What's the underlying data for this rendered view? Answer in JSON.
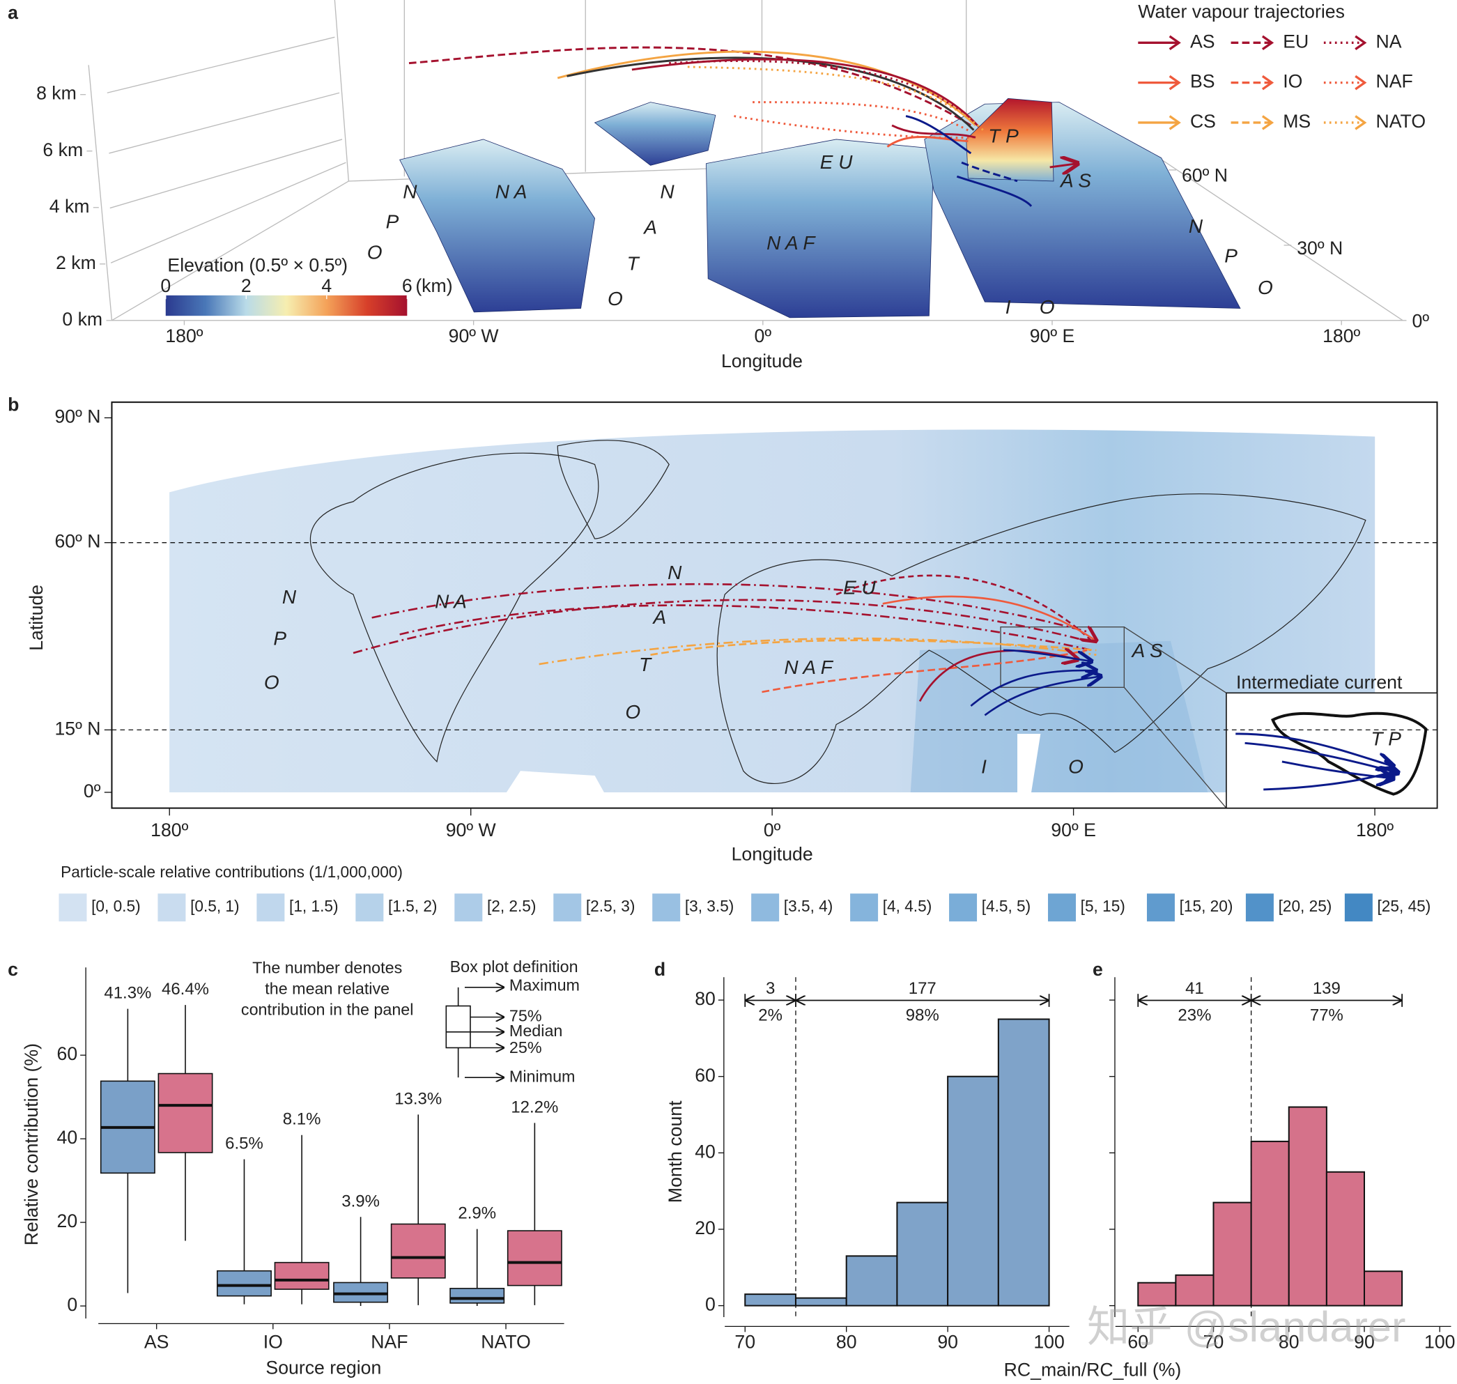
{
  "panel_labels": [
    "a",
    "b",
    "c",
    "d",
    "e"
  ],
  "panel_a": {
    "legend_title": "Water vapour trajectories",
    "trajectories": [
      {
        "name": "AS",
        "color": "#a5112e",
        "style": "solid"
      },
      {
        "name": "EU",
        "color": "#a5112e",
        "style": "dashed"
      },
      {
        "name": "NA",
        "color": "#a5112e",
        "style": "dotted"
      },
      {
        "name": "BS",
        "color": "#ef5a3c",
        "style": "solid"
      },
      {
        "name": "IO",
        "color": "#ef5a3c",
        "style": "dashed"
      },
      {
        "name": "NAF",
        "color": "#ef5a3c",
        "style": "dotted"
      },
      {
        "name": "CS",
        "color": "#f4a442",
        "style": "solid"
      },
      {
        "name": "MS",
        "color": "#f4a442",
        "style": "dashed"
      },
      {
        "name": "NATO",
        "color": "#f4a442",
        "style": "dotted"
      }
    ],
    "z_ticks": [
      {
        "value": 8,
        "label": "8 km"
      },
      {
        "value": 6,
        "label": "6 km"
      },
      {
        "value": 4,
        "label": "4 km"
      },
      {
        "value": 2,
        "label": "2 km"
      },
      {
        "value": 0,
        "label": "0 km"
      }
    ],
    "lat_ticks": [
      {
        "value": 60,
        "label": "60º N"
      },
      {
        "value": 30,
        "label": "30º N"
      },
      {
        "value": 0,
        "label": "0º"
      }
    ],
    "lon_ticks": [
      {
        "value": -180,
        "label": "180º"
      },
      {
        "value": -90,
        "label": "90º W"
      },
      {
        "value": 0,
        "label": "0º"
      },
      {
        "value": 90,
        "label": "90º E"
      },
      {
        "value": 180,
        "label": "180º"
      }
    ],
    "xlabel": "Longitude",
    "colorbar": {
      "title": "Elevation (0.5º × 0.5º)",
      "ticks": [
        0,
        2,
        4,
        6
      ],
      "unit": "(km)",
      "colors": [
        "#2b3a8f",
        "#4a78b8",
        "#b9dbe8",
        "#f6eeb0",
        "#f4a259",
        "#d7402a",
        "#a5112e"
      ]
    },
    "region_labels": [
      "N",
      "P",
      "O",
      "N A",
      "N",
      "A",
      "T",
      "O",
      "E U",
      "T P",
      "A S",
      "N A F",
      "N",
      "P",
      "O",
      "I",
      "O"
    ]
  },
  "panel_b": {
    "lat_ticks": [
      {
        "value": 90,
        "label": "90º N"
      },
      {
        "value": 60,
        "label": "60º N"
      },
      {
        "value": 15,
        "label": "15º N"
      },
      {
        "value": 0,
        "label": "0º"
      }
    ],
    "reference_lats": [
      60,
      15
    ],
    "lon_ticks": [
      {
        "value": -180,
        "label": "180º"
      },
      {
        "value": -90,
        "label": "90º W"
      },
      {
        "value": 0,
        "label": "0º"
      },
      {
        "value": 90,
        "label": "90º E"
      },
      {
        "value": 180,
        "label": "180º"
      }
    ],
    "xlabel": "Longitude",
    "ylabel": "Latitude",
    "inset_title": "Intermediate current",
    "region_labels": [
      "N",
      "P",
      "O",
      "N A",
      "N",
      "A",
      "T",
      "O",
      "E U",
      "A S",
      "N A F",
      "I",
      "O",
      "T P"
    ],
    "legend_title": "Particle-scale relative contributions (1/1,000,000)",
    "legend_bins": [
      "[0, 0.5)",
      "[0.5, 1)",
      "[1, 1.5)",
      "[1.5, 2)",
      "[2, 2.5)",
      "[2.5, 3)",
      "[3, 3.5)",
      "[3.5, 4)",
      "[4, 4.5)",
      "[4.5, 5)",
      "[5, 15)",
      "[15, 20)",
      "[20, 25)",
      "[25, 45)"
    ],
    "legend_colors": [
      "#d3e2f2",
      "#c9dcef",
      "#c0d7ed",
      "#b6d2ea",
      "#adcce8",
      "#a3c6e5",
      "#99c0e2",
      "#8fbadf",
      "#85b4dc",
      "#7aadd8",
      "#6ea5d3",
      "#609bce",
      "#5292c9",
      "#4388c3"
    ]
  },
  "chart_data": [
    {
      "type": "box",
      "categories": [
        "AS",
        "IO",
        "NAF",
        "NATO"
      ],
      "xlabel": "Source region",
      "ylabel": "Relative contribution (%)",
      "ylim": [
        -3,
        81
      ],
      "yticks": [
        0,
        20,
        40,
        60
      ],
      "note": [
        "The number denotes",
        "the mean relative",
        "contribution in the panel"
      ],
      "box_definition": {
        "title": "Box plot definition",
        "labels": [
          "Maximum",
          "75%",
          "Median",
          "25%",
          "Minimum"
        ]
      },
      "series": [
        {
          "color": "#7aa0c8",
          "min": [
            3.1,
            0.4,
            0,
            0
          ],
          "q1": [
            31.8,
            2.4,
            0.9,
            0.7
          ],
          "median": [
            42.7,
            4.9,
            2.9,
            1.8
          ],
          "q3": [
            53.8,
            8.4,
            5.6,
            4.2
          ],
          "max": [
            71.1,
            35.1,
            21.3,
            18.4
          ],
          "values": [
            41.3,
            6.5,
            3.9,
            2.9
          ],
          "value_labels": [
            "41.3%",
            "6.5%",
            "3.9%",
            "2.9%"
          ]
        },
        {
          "color": "#d7738c",
          "min": [
            15.6,
            0.4,
            0.2,
            0.2
          ],
          "q1": [
            36.7,
            4.0,
            6.7,
            4.9
          ],
          "median": [
            48,
            6.2,
            11.6,
            10.4
          ],
          "q3": [
            55.6,
            10.4,
            19.6,
            18
          ],
          "max": [
            72,
            40.9,
            45.8,
            43.8
          ],
          "values": [
            46.4,
            8.1,
            13.3,
            12.2
          ],
          "value_labels": [
            "46.4%",
            "8.1%",
            "13.3%",
            "12.2%"
          ]
        }
      ]
    },
    {
      "type": "histogram",
      "bins": [
        70,
        75,
        80,
        85,
        90,
        95,
        100
      ],
      "values": [
        3,
        2,
        13,
        27,
        60,
        75
      ],
      "color": "#7fa3c9",
      "xlim": [
        68,
        102
      ],
      "xticks": [
        70,
        80,
        90,
        100
      ],
      "ylim": [
        -3,
        86
      ],
      "yticks": [
        0,
        20,
        40,
        60,
        80
      ],
      "ylabel": "Month count",
      "xlabel": "RC_main/RC_full (%)",
      "cutoff": 75,
      "split": {
        "counts": [
          3,
          177
        ],
        "percents": [
          2,
          98
        ],
        "percent_labels": [
          "2%",
          "98%"
        ]
      }
    },
    {
      "type": "histogram",
      "bins": [
        60,
        65,
        70,
        75,
        80,
        85,
        90,
        95
      ],
      "values": [
        6,
        8,
        27,
        43,
        52,
        35,
        9
      ],
      "color": "#d5728a",
      "xlim": [
        57,
        101.5
      ],
      "xticks": [
        60,
        70,
        80,
        90,
        100
      ],
      "ylim": [
        -3,
        86
      ],
      "yticks": [
        0,
        20,
        40,
        60,
        80
      ],
      "ytick_labels": false,
      "cutoff": 75,
      "split": {
        "counts": [
          41,
          139
        ],
        "percents": [
          23,
          77
        ],
        "percent_labels": [
          "23%",
          "77%"
        ]
      }
    }
  ],
  "watermark": "知乎 @slandarer"
}
